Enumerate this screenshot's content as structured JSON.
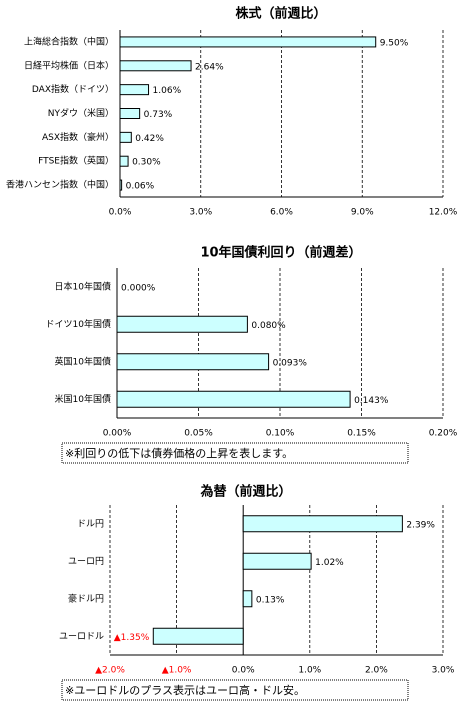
{
  "chart_data": [
    {
      "type": "bar",
      "orientation": "horizontal",
      "title": "株式（前週比）",
      "categories": [
        "上海総合指数（中国）",
        "日経平均株価（日本）",
        "DAX指数（ドイツ）",
        "NYダウ（米国）",
        "ASX指数（豪州）",
        "FTSE指数（英国）",
        "香港ハンセン指数（中国）"
      ],
      "values": [
        9.5,
        2.64,
        1.06,
        0.73,
        0.42,
        0.3,
        0.06
      ],
      "value_labels": [
        "9.50%",
        "2.64%",
        "1.06%",
        "0.73%",
        "0.42%",
        "0.30%",
        "0.06%"
      ],
      "color": "#ccffff",
      "xlim": [
        0,
        12
      ],
      "xticks": [
        {
          "value": 0,
          "label": "0.0%"
        },
        {
          "value": 3,
          "label": "3.0%"
        },
        {
          "value": 6,
          "label": "6.0%"
        },
        {
          "value": 9,
          "label": "9.0%"
        },
        {
          "value": 12,
          "label": "12.0%"
        }
      ],
      "grid": true
    },
    {
      "type": "bar",
      "orientation": "horizontal",
      "title": "10年国債利回り（前週差）",
      "categories": [
        "日本10年国債",
        "ドイツ10年国債",
        "英国10年国債",
        "米国10年国債"
      ],
      "values": [
        0.0,
        0.08,
        0.093,
        0.143
      ],
      "value_labels": [
        "0.000%",
        "0.080%",
        "0.093%",
        "0.143%"
      ],
      "color": "#ccffff",
      "xlim": [
        0,
        0.2
      ],
      "xticks": [
        {
          "value": 0,
          "label": "0.00%"
        },
        {
          "value": 0.05,
          "label": "0.05%"
        },
        {
          "value": 0.1,
          "label": "0.10%"
        },
        {
          "value": 0.15,
          "label": "0.15%"
        },
        {
          "value": 0.2,
          "label": "0.20%"
        }
      ],
      "grid": true,
      "note": "※利回りの低下は債券価格の上昇を表します。"
    },
    {
      "type": "bar",
      "orientation": "horizontal",
      "title": "為替（前週比）",
      "categories": [
        "ドル円",
        "ユーロ円",
        "豪ドル円",
        "ユーロドル"
      ],
      "values": [
        2.39,
        1.02,
        0.13,
        -1.35
      ],
      "value_labels": [
        "2.39%",
        "1.02%",
        "0.13%",
        "▲1.35%"
      ],
      "color": "#ccffff",
      "negative_label_color": "#ff0000",
      "xlim": [
        -2,
        3
      ],
      "xticks": [
        {
          "value": -2,
          "label": "▲2.0%"
        },
        {
          "value": -1,
          "label": "▲1.0%"
        },
        {
          "value": 0,
          "label": "0.0%"
        },
        {
          "value": 1,
          "label": "1.0%"
        },
        {
          "value": 2,
          "label": "2.0%"
        },
        {
          "value": 3,
          "label": "3.0%"
        }
      ],
      "grid": true,
      "note": "※ユーロドルのプラス表示はユーロ高・ドル安。"
    }
  ]
}
